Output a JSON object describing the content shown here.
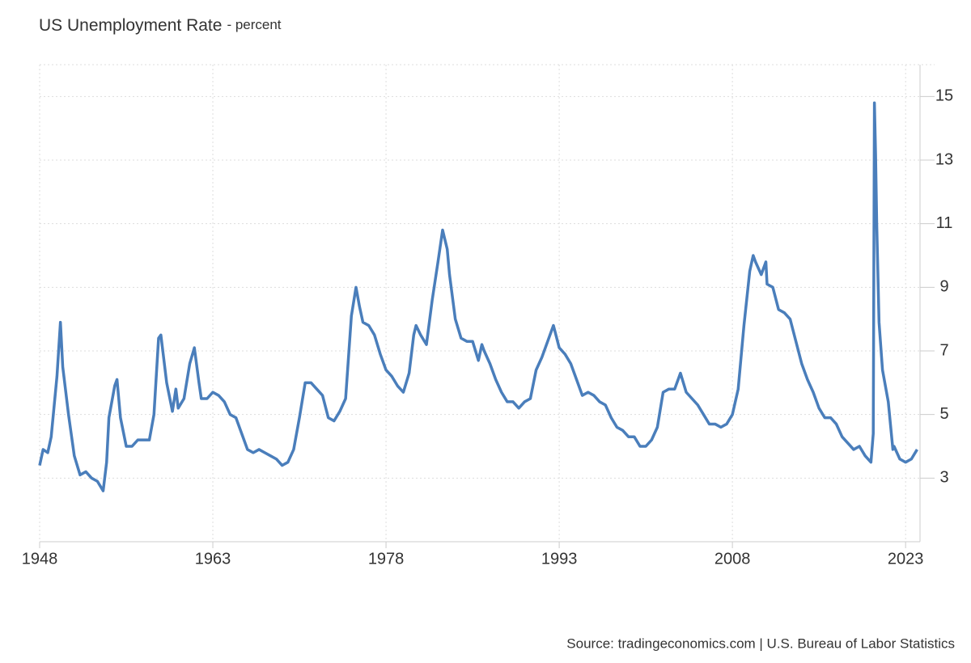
{
  "chart_data": {
    "type": "line",
    "title": "US Unemployment Rate",
    "subtitle": "- percent",
    "source": "Source: tradingeconomics.com | U.S. Bureau of Labor Statistics",
    "color": "#4a7ebb",
    "grid": true,
    "xlim": [
      1948,
      2024.25
    ],
    "xticks": [
      1948,
      1963,
      1978,
      1993,
      2008,
      2023
    ],
    "ylim": [
      1,
      16
    ],
    "yticks": [
      3,
      5,
      7,
      9,
      11,
      13,
      15
    ],
    "x": [
      1948.0,
      1948.3,
      1948.7,
      1949.0,
      1949.5,
      1949.8,
      1950.0,
      1950.5,
      1951.0,
      1951.5,
      1952.0,
      1952.5,
      1953.0,
      1953.5,
      1953.8,
      1954.0,
      1954.5,
      1954.7,
      1955.0,
      1955.5,
      1956.0,
      1956.5,
      1957.0,
      1957.5,
      1957.9,
      1958.3,
      1958.5,
      1959.0,
      1959.5,
      1959.8,
      1960.0,
      1960.5,
      1961.0,
      1961.4,
      1961.8,
      1962.0,
      1962.5,
      1963.0,
      1963.5,
      1964.0,
      1964.5,
      1965.0,
      1965.5,
      1966.0,
      1966.5,
      1967.0,
      1967.5,
      1968.0,
      1968.5,
      1969.0,
      1969.5,
      1970.0,
      1970.5,
      1971.0,
      1971.5,
      1972.0,
      1972.5,
      1973.0,
      1973.5,
      1974.0,
      1974.5,
      1975.0,
      1975.4,
      1975.7,
      1976.0,
      1976.5,
      1977.0,
      1977.5,
      1978.0,
      1978.5,
      1979.0,
      1979.5,
      1980.0,
      1980.4,
      1980.6,
      1981.0,
      1981.5,
      1982.0,
      1982.5,
      1982.9,
      1983.3,
      1983.5,
      1984.0,
      1984.5,
      1985.0,
      1985.5,
      1986.0,
      1986.3,
      1986.5,
      1987.0,
      1987.5,
      1988.0,
      1988.5,
      1989.0,
      1989.5,
      1990.0,
      1990.5,
      1991.0,
      1991.5,
      1992.0,
      1992.5,
      1993.0,
      1993.5,
      1994.0,
      1994.5,
      1995.0,
      1995.5,
      1996.0,
      1996.5,
      1997.0,
      1997.5,
      1998.0,
      1998.5,
      1999.0,
      1999.5,
      2000.0,
      2000.5,
      2001.0,
      2001.5,
      2002.0,
      2002.5,
      2003.0,
      2003.5,
      2004.0,
      2004.5,
      2005.0,
      2005.5,
      2006.0,
      2006.5,
      2007.0,
      2007.5,
      2008.0,
      2008.5,
      2009.0,
      2009.5,
      2009.8,
      2010.0,
      2010.5,
      2010.9,
      2011.0,
      2011.5,
      2012.0,
      2012.5,
      2013.0,
      2013.5,
      2014.0,
      2014.5,
      2015.0,
      2015.5,
      2016.0,
      2016.5,
      2017.0,
      2017.5,
      2018.0,
      2018.5,
      2019.0,
      2019.5,
      2020.0,
      2020.2,
      2020.3,
      2020.4,
      2020.5,
      2020.7,
      2021.0,
      2021.5,
      2021.9,
      2022.0,
      2022.5,
      2023.0,
      2023.5,
      2024.0
    ],
    "values": [
      3.4,
      3.9,
      3.8,
      4.3,
      6.2,
      7.9,
      6.5,
      5.0,
      3.7,
      3.1,
      3.2,
      3.0,
      2.9,
      2.6,
      3.5,
      4.9,
      5.9,
      6.1,
      4.9,
      4.0,
      4.0,
      4.2,
      4.2,
      4.2,
      5.0,
      7.4,
      7.5,
      6.0,
      5.1,
      5.8,
      5.2,
      5.5,
      6.6,
      7.1,
      6.0,
      5.5,
      5.5,
      5.7,
      5.6,
      5.4,
      5.0,
      4.9,
      4.4,
      3.9,
      3.8,
      3.9,
      3.8,
      3.7,
      3.6,
      3.4,
      3.5,
      3.9,
      4.9,
      6.0,
      6.0,
      5.8,
      5.6,
      4.9,
      4.8,
      5.1,
      5.5,
      8.1,
      9.0,
      8.4,
      7.9,
      7.8,
      7.5,
      6.9,
      6.4,
      6.2,
      5.9,
      5.7,
      6.3,
      7.5,
      7.8,
      7.5,
      7.2,
      8.6,
      9.8,
      10.8,
      10.2,
      9.4,
      8.0,
      7.4,
      7.3,
      7.3,
      6.7,
      7.2,
      7.0,
      6.6,
      6.1,
      5.7,
      5.4,
      5.4,
      5.2,
      5.4,
      5.5,
      6.4,
      6.8,
      7.3,
      7.8,
      7.1,
      6.9,
      6.6,
      6.1,
      5.6,
      5.7,
      5.6,
      5.4,
      5.3,
      4.9,
      4.6,
      4.5,
      4.3,
      4.3,
      4.0,
      4.0,
      4.2,
      4.6,
      5.7,
      5.8,
      5.8,
      6.3,
      5.7,
      5.5,
      5.3,
      5.0,
      4.7,
      4.7,
      4.6,
      4.7,
      5.0,
      5.8,
      7.8,
      9.5,
      10.0,
      9.8,
      9.4,
      9.8,
      9.1,
      9.0,
      8.3,
      8.2,
      8.0,
      7.3,
      6.6,
      6.1,
      5.7,
      5.2,
      4.9,
      4.9,
      4.7,
      4.3,
      4.1,
      3.9,
      4.0,
      3.7,
      3.5,
      4.4,
      14.8,
      13.2,
      11.0,
      7.9,
      6.4,
      5.4,
      3.9,
      4.0,
      3.6,
      3.5,
      3.6,
      3.9
    ]
  }
}
